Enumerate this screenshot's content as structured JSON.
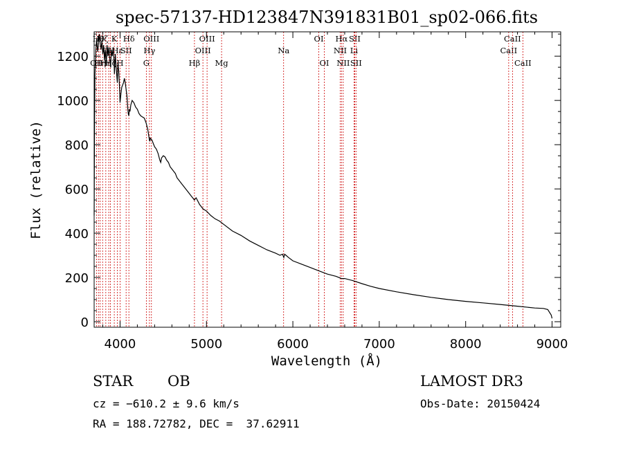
{
  "chart_data": {
    "type": "line",
    "title": "spec-57137-HD123847N391831B01_sp02-066.fits",
    "xlabel": "Wavelength (Å)",
    "ylabel": "Flux (relative)",
    "xlim": [
      3700,
      9100
    ],
    "ylim": [
      -25,
      1310
    ],
    "xticks": [
      4000,
      5000,
      6000,
      7000,
      8000,
      9000
    ],
    "yticks": [
      0,
      200,
      400,
      600,
      800,
      1000,
      1200
    ],
    "series": [
      {
        "name": "spectrum",
        "x": [
          3700,
          3705,
          3710,
          3720,
          3730,
          3740,
          3750,
          3760,
          3770,
          3780,
          3790,
          3800,
          3810,
          3820,
          3830,
          3840,
          3850,
          3860,
          3870,
          3880,
          3890,
          3900,
          3910,
          3920,
          3930,
          3935,
          3945,
          3955,
          3968,
          3975,
          3985,
          3995,
          4000,
          4010,
          4020,
          4030,
          4040,
          4050,
          4060,
          4070,
          4080,
          4090,
          4095,
          4101,
          4108,
          4115,
          4125,
          4140,
          4160,
          4180,
          4200,
          4220,
          4240,
          4260,
          4280,
          4300,
          4320,
          4340,
          4345,
          4350,
          4370,
          4390,
          4400,
          4420,
          4440,
          4460,
          4471,
          4480,
          4500,
          4520,
          4540,
          4560,
          4580,
          4600,
          4620,
          4640,
          4660,
          4680,
          4700,
          4720,
          4740,
          4760,
          4780,
          4800,
          4820,
          4840,
          4860,
          4870,
          4880,
          4900,
          4920,
          4940,
          4960,
          4980,
          5000,
          5050,
          5100,
          5150,
          5200,
          5300,
          5400,
          5500,
          5600,
          5700,
          5800,
          5850,
          5880,
          5895,
          5905,
          5920,
          5950,
          6000,
          6100,
          6200,
          6300,
          6400,
          6500,
          6563,
          6600,
          6700,
          6800,
          6900,
          7000,
          7200,
          7400,
          7600,
          7800,
          8000,
          8200,
          8400,
          8600,
          8800,
          8900,
          8950,
          8990,
          9000
        ],
        "y": [
          480,
          900,
          1120,
          1230,
          1280,
          1220,
          1250,
          1300,
          1260,
          1230,
          1270,
          1210,
          1250,
          1180,
          1230,
          1160,
          1250,
          1200,
          1240,
          1190,
          1150,
          1230,
          1200,
          1240,
          1180,
          1120,
          1210,
          1150,
          1080,
          1170,
          1130,
          1050,
          990,
          1030,
          1060,
          1070,
          1080,
          1100,
          1080,
          1050,
          1020,
          960,
          940,
          930,
          960,
          950,
          980,
          1000,
          990,
          970,
          960,
          940,
          930,
          925,
          920,
          900,
          870,
          820,
          815,
          830,
          820,
          800,
          790,
          780,
          760,
          730,
          720,
          740,
          750,
          745,
          730,
          720,
          700,
          690,
          680,
          670,
          650,
          640,
          630,
          620,
          610,
          600,
          590,
          580,
          570,
          560,
          550,
          555,
          560,
          545,
          530,
          520,
          510,
          505,
          500,
          480,
          465,
          455,
          440,
          410,
          390,
          365,
          345,
          325,
          310,
          300,
          305,
          290,
          305,
          300,
          290,
          275,
          260,
          245,
          230,
          215,
          205,
          195,
          195,
          185,
          172,
          160,
          150,
          135,
          122,
          110,
          100,
          92,
          85,
          78,
          70,
          62,
          60,
          55,
          30,
          15
        ]
      }
    ],
    "lines": [
      {
        "wl": 3727,
        "label": "OII",
        "row": 2
      },
      {
        "wl": 3750,
        "label": "Hθ",
        "row": 0
      },
      {
        "wl": 3770,
        "label": "Hη",
        "row": 2
      },
      {
        "wl": 3798,
        "label": "Hζ",
        "row": 0
      },
      {
        "wl": 3835,
        "label": "Hη",
        "row": 2
      },
      {
        "wl": 3869,
        "label": "CII",
        "row": 1
      },
      {
        "wl": 3889,
        "label": "Hζ",
        "row": 2
      },
      {
        "wl": 3933,
        "label": "K",
        "row": 0
      },
      {
        "wl": 3968,
        "label": "Hε",
        "row": 1
      },
      {
        "wl": 4001,
        "label": "H",
        "row": 2
      },
      {
        "wl": 4070,
        "label": "SII",
        "row": 1
      },
      {
        "wl": 4102,
        "label": "Hδ",
        "row": 0
      },
      {
        "wl": 4304,
        "label": "G",
        "row": 2
      },
      {
        "wl": 4340,
        "label": "Hγ",
        "row": 1
      },
      {
        "wl": 4363,
        "label": "OIII",
        "row": 0
      },
      {
        "wl": 4861,
        "label": "Hβ",
        "row": 2
      },
      {
        "wl": 4959,
        "label": "OIII",
        "row": 1
      },
      {
        "wl": 5007,
        "label": "OIII",
        "row": 0
      },
      {
        "wl": 5175,
        "label": "Mg",
        "row": 2
      },
      {
        "wl": 5893,
        "label": "Na",
        "row": 1
      },
      {
        "wl": 6300,
        "label": "OI",
        "row": 0
      },
      {
        "wl": 6364,
        "label": "OI",
        "row": 2
      },
      {
        "wl": 6548,
        "label": "NII",
        "row": 1
      },
      {
        "wl": 6563,
        "label": "Hα",
        "row": 0
      },
      {
        "wl": 6583,
        "label": "NII",
        "row": 2
      },
      {
        "wl": 6708,
        "label": "Li",
        "row": 1
      },
      {
        "wl": 6716,
        "label": "SII",
        "row": 0
      },
      {
        "wl": 6731,
        "label": "SII",
        "row": 2
      },
      {
        "wl": 8498,
        "label": "CaII",
        "row": 1
      },
      {
        "wl": 8542,
        "label": "CaII",
        "row": 0
      },
      {
        "wl": 8662,
        "label": "CaII",
        "row": 2
      }
    ]
  },
  "info": {
    "object_class": "STAR",
    "subclass": "OB",
    "survey": "LAMOST DR3",
    "cz": "cz = −610.2 ± 9.6 km/s",
    "obs_date": "Obs-Date: 20150424",
    "coords": "RA = 188.72782, DEC =  37.62911"
  },
  "colors": {
    "axis": "#000000",
    "spectrum": "#000000",
    "line_marker": "#cc0000"
  }
}
